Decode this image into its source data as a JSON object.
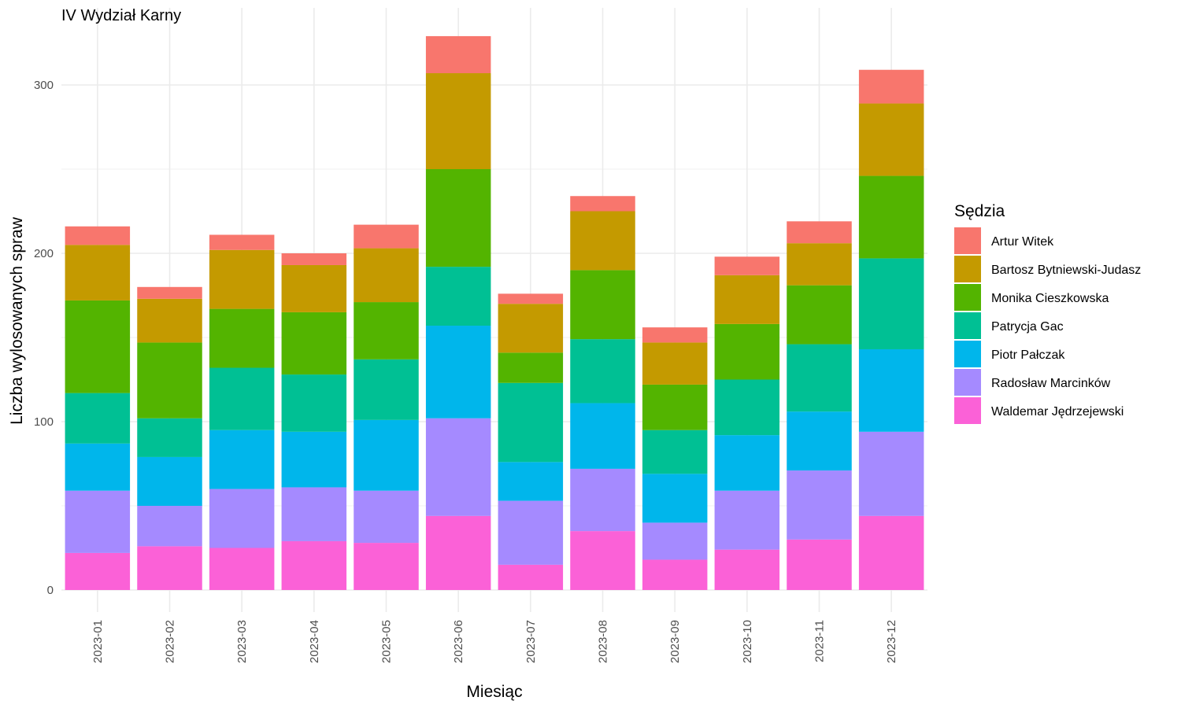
{
  "chart_data": {
    "type": "bar",
    "stacked": true,
    "title": "IV Wydział Karny",
    "xlabel": "Miesiąc",
    "ylabel": "Liczba wylosowanych spraw",
    "ylim": [
      0,
      335
    ],
    "yticks": [
      0,
      100,
      200,
      300
    ],
    "grid": true,
    "legend": {
      "title": "Sędzia",
      "position": "right"
    },
    "categories": [
      "2023-01",
      "2023-02",
      "2023-03",
      "2023-04",
      "2023-05",
      "2023-06",
      "2023-07",
      "2023-08",
      "2023-09",
      "2023-10",
      "2023-11",
      "2023-12"
    ],
    "series": [
      {
        "name": "Artur Witek",
        "color": "#F8766D",
        "values": [
          11,
          7,
          9,
          7,
          14,
          22,
          6,
          9,
          9,
          11,
          13,
          20
        ]
      },
      {
        "name": "Bartosz Bytniewski-Judasz",
        "color": "#C49A00",
        "values": [
          33,
          26,
          35,
          28,
          32,
          57,
          29,
          35,
          25,
          29,
          25,
          43
        ]
      },
      {
        "name": "Monika Cieszkowska",
        "color": "#53B400",
        "values": [
          55,
          45,
          35,
          37,
          34,
          58,
          18,
          41,
          27,
          33,
          35,
          49
        ]
      },
      {
        "name": "Patrycja Gac",
        "color": "#00C094",
        "values": [
          30,
          23,
          37,
          34,
          36,
          35,
          47,
          38,
          26,
          33,
          40,
          54
        ]
      },
      {
        "name": "Piotr Pałczak",
        "color": "#00B6EB",
        "values": [
          28,
          29,
          35,
          33,
          42,
          55,
          23,
          39,
          29,
          33,
          35,
          49
        ]
      },
      {
        "name": "Radosław Marcinków",
        "color": "#A58AFF",
        "values": [
          37,
          24,
          35,
          32,
          31,
          58,
          38,
          37,
          22,
          35,
          41,
          50
        ]
      },
      {
        "name": "Waldemar Jędrzejewski",
        "color": "#FB61D7",
        "values": [
          22,
          26,
          25,
          29,
          28,
          44,
          15,
          35,
          18,
          24,
          30,
          44
        ]
      }
    ]
  }
}
